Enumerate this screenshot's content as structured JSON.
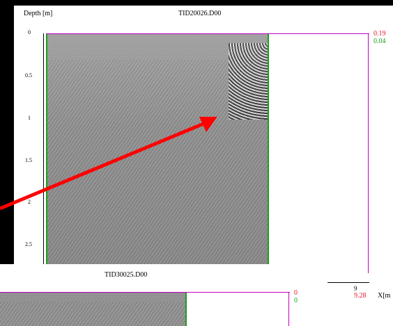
{
  "top_panel": {
    "y_axis_label": "Depth [m]",
    "file_name": "TID20026.D00",
    "depth_ticks": [
      "0",
      "0.5",
      "1",
      "1.5",
      "2",
      "2.5"
    ],
    "right_value_red": "0.19",
    "right_value_green": "0.04",
    "x_tick_label": "9",
    "x_end_value": "9.28",
    "x_axis_label": "X[m"
  },
  "bottom_panel": {
    "file_name": "TID30025.D00",
    "right_value_red": "0",
    "right_value_green": "0"
  },
  "annotation": {
    "arrow_color": "#ff0000"
  },
  "colors": {
    "magenta_line": "#c000c0",
    "green_line": "#1aa01a",
    "red_text": "#e8102a"
  }
}
